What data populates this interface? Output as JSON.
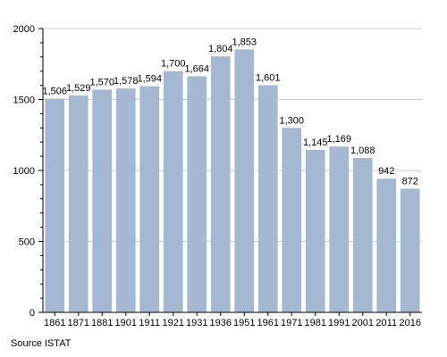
{
  "chart_data": {
    "type": "bar",
    "categories": [
      "1861",
      "1871",
      "1881",
      "1901",
      "1911",
      "1921",
      "1931",
      "1936",
      "1951",
      "1961",
      "1971",
      "1981",
      "1991",
      "2001",
      "2011",
      "2016"
    ],
    "values": [
      1506,
      1529,
      1570,
      1578,
      1594,
      1700,
      1664,
      1804,
      1853,
      1601,
      1300,
      1145,
      1169,
      1088,
      942,
      872
    ],
    "data_labels": [
      "1,506",
      "1,529",
      "1,570",
      "1,578",
      "1,594",
      "1,700",
      "1,664",
      "1,804",
      "1,853",
      "1,601",
      "1,300",
      "1,145",
      "1,169",
      "1,088",
      "942",
      "872"
    ],
    "y_ticks": [
      0,
      500,
      1000,
      1500,
      2000
    ],
    "ylim": [
      0,
      2000
    ],
    "minor_step": 100,
    "grid": true,
    "bar_color": "#a4b9d1",
    "grid_color": "#cccccc",
    "axis_color": "#000000"
  },
  "source": "Source ISTAT"
}
